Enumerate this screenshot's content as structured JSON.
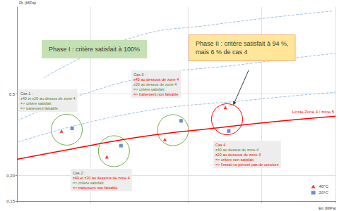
{
  "chart_data": {
    "type": "scatter",
    "x_label": "Eit (MPa)",
    "y_label": "Rt (MPa)",
    "log": true,
    "xlim": [
      100,
      2000
    ],
    "xticks": [
      100,
      200,
      500,
      1000,
      2000
    ],
    "ylim": [
      0.15,
      1.33
    ],
    "yticks": [
      {
        "value": 0.15,
        "label": "0,15"
      },
      {
        "value": 0.2,
        "label": "0,20"
      },
      {
        "value": 0.5,
        "label": "0,5"
      }
    ],
    "grid": true,
    "tick_labels": "y",
    "legend": "bottom-right",
    "series": [
      {
        "type": "line",
        "color": "#ff0000",
        "line_style": "solid",
        "x": [
          100,
          168,
          325,
          630,
          1220,
          2000
        ],
        "values": [
          0.24,
          0.27,
          0.31,
          0.34,
          0.37,
          0.39
        ]
      },
      {
        "type": "line",
        "color": "#9dc3e6",
        "line_style": "dashed",
        "x": [
          129,
          285,
          630,
          1940
        ],
        "values": [
          0.6,
          0.93,
          1.09,
          1.27
        ]
      },
      {
        "type": "line",
        "color": "#9dc3e6",
        "line_style": "dashed",
        "x": [
          100,
          285,
          935,
          2000
        ],
        "values": [
          0.37,
          0.58,
          0.71,
          0.79
        ]
      },
      {
        "type": "line",
        "color": "#9dc3e6",
        "line_style": "dashed",
        "x": [
          100,
          285,
          935,
          2000
        ],
        "values": [
          0.29,
          0.4,
          0.47,
          0.51
        ]
      },
      {
        "type": "scatter",
        "name": "40°C",
        "color": "#ff0000",
        "marker": "triangle",
        "x": [
          152,
          233,
          402,
          710
        ],
        "values": [
          0.33,
          0.247,
          0.3,
          0.43
        ]
      },
      {
        "type": "scatter",
        "name": "20°C",
        "color": "#4472c4",
        "marker": "square",
        "x": [
          168,
          266,
          468,
          733
        ],
        "values": [
          0.34,
          0.28,
          0.37,
          0.33
        ]
      }
    ],
    "limit_label": "Limite Zone 4 / zone 5",
    "phases": [
      {
        "color": "#c5e0b4",
        "lines": [
          "Phase I : critère satisfait à 100%"
        ]
      },
      {
        "color": "#ffe699",
        "lines": [
          "Phase II : critère satisfait à 94 %,",
          "mais 6 % de cas 4"
        ]
      }
    ],
    "cases": [
      {
        "color": "#70ad47",
        "lines": [
          {
            "text": "Cas 1 :",
            "color": "#595959"
          },
          {
            "text": "z40 et z20 au dessus de zone 4",
            "color": "#548235"
          },
          {
            "text": "=> critère satisfait",
            "color": "#548235"
          },
          {
            "text": "=> traitement faisable",
            "color": "#548235"
          }
        ]
      },
      {
        "color": "#70ad47",
        "lines": [
          {
            "text": "Cas 2 :",
            "color": "#595959"
          },
          {
            "text": "z40 et z20 au dessous de zone 4",
            "color": "#ff0000"
          },
          {
            "text": "=> critère satisfait",
            "color": "#548235"
          },
          {
            "text": "=> traitement non faisable",
            "color": "#ff0000"
          }
        ]
      },
      {
        "color": "#70ad47",
        "lines": [
          {
            "text": "Cas 3 :",
            "color": "#595959"
          },
          {
            "text": "z40 au dessous de zone 4",
            "color": "#ff0000"
          },
          {
            "text": "z20 au dessus de zone 4",
            "color": "#548235"
          },
          {
            "text": "=> critère satisfait",
            "color": "#548235"
          },
          {
            "text": "=> traitement non faisable",
            "color": "#ff0000"
          }
        ]
      },
      {
        "color": "#ff0000",
        "lines": [
          {
            "text": "Cas 4",
            "color": "#ff0000"
          },
          {
            "text": "z40 au dessus de zone 4",
            "color": "#548235"
          },
          {
            "text": "z20 au dessous de zone 4",
            "color": "#ff0000"
          },
          {
            "text": "=> critère non satisfait",
            "color": "#ff0000"
          },
          {
            "text": "=> l'essai ne permet pas de conclure",
            "color": "#ff0000"
          }
        ]
      }
    ]
  }
}
